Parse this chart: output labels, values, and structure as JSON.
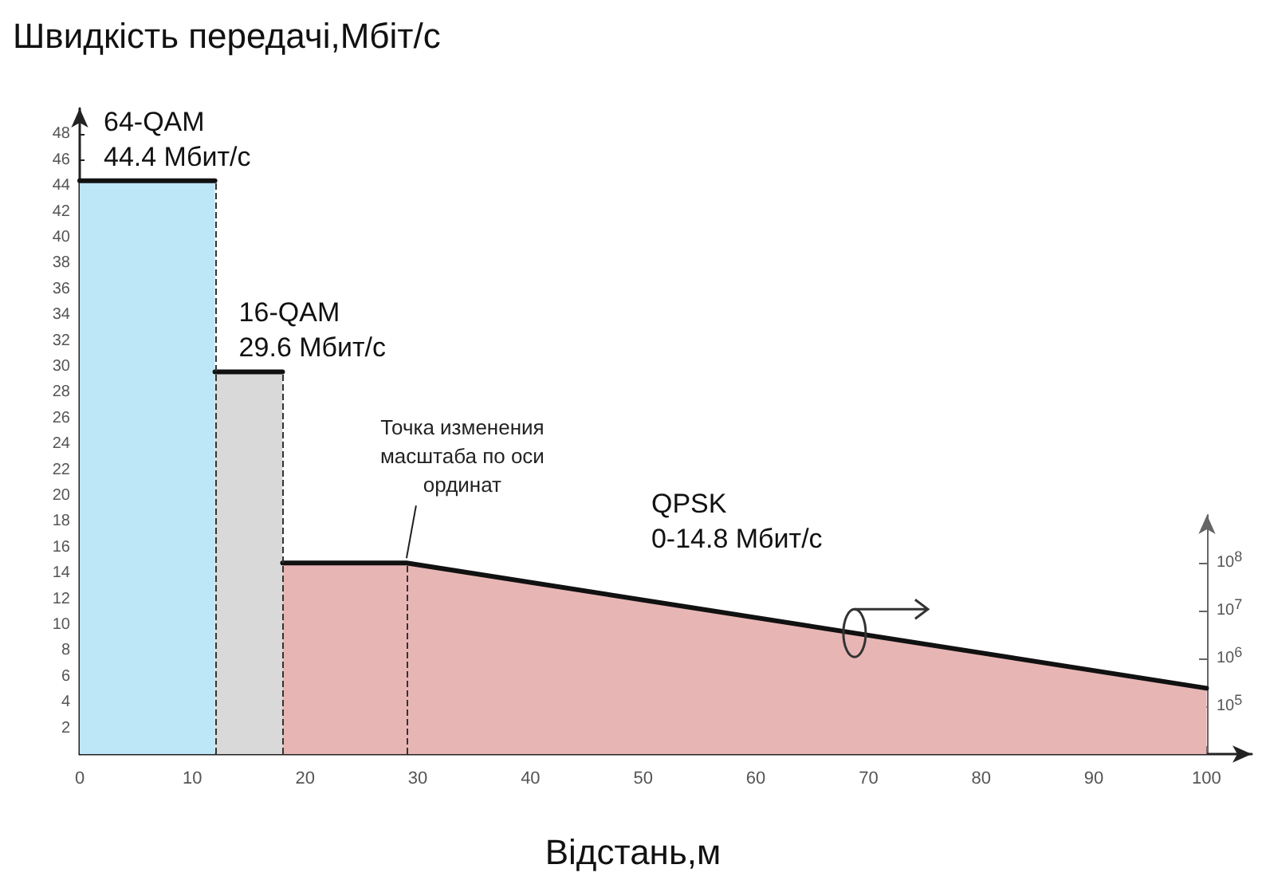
{
  "chart_data": {
    "type": "area",
    "title": "Швидкість передачі,Мбіт/с",
    "xlabel": "Відстань,м",
    "series": [
      {
        "name": "64-QAM\n44.4 Мбит/с",
        "color": "#bde6f7",
        "x": [
          0,
          12
        ],
        "values": [
          44.4,
          44.4
        ]
      },
      {
        "name": "16-QAM\n29.6 Мбит/с",
        "color": "#d9d9d9",
        "x": [
          12,
          18
        ],
        "values": [
          29.6,
          29.6
        ]
      },
      {
        "name": "QPSK\n0-14.8 Мбит/с",
        "color": "#e8b5b5",
        "x": [
          18,
          29,
          100
        ],
        "values": [
          14.8,
          14.8,
          5.1
        ]
      }
    ],
    "annotations": [
      {
        "text": "Точка изменения\nмасштаба по оси\nординат",
        "x": 29,
        "y": 14.8
      }
    ],
    "ref_lines": [
      {
        "axis": "x",
        "value": 12,
        "line_style": "dashed"
      },
      {
        "axis": "x",
        "value": 18,
        "line_style": "dashed"
      },
      {
        "axis": "x",
        "value": 29,
        "line_style": "dashed"
      }
    ],
    "xlim": [
      0,
      104
    ],
    "xticks": [
      0,
      10,
      20,
      30,
      40,
      50,
      60,
      70,
      80,
      90,
      100
    ],
    "ylim": [
      0,
      50
    ],
    "yticks": [
      2,
      4,
      6,
      8,
      10,
      12,
      14,
      16,
      18,
      20,
      22,
      24,
      26,
      28,
      30,
      32,
      34,
      36,
      38,
      40,
      42,
      44,
      46,
      48
    ],
    "y2lim": [
      10000,
      1000000000
    ],
    "y2ticks": [
      {
        "value": 100000,
        "label": "10$^{5}$"
      },
      {
        "value": 1000000,
        "label": "10$^{6}$"
      },
      {
        "value": 10000000,
        "label": "10$^{7}$"
      },
      {
        "value": 100000000,
        "label": "10$^{8}$"
      }
    ],
    "log": "y2",
    "grid": false,
    "legend": false,
    "line_style": "solid",
    "marker": "none"
  }
}
